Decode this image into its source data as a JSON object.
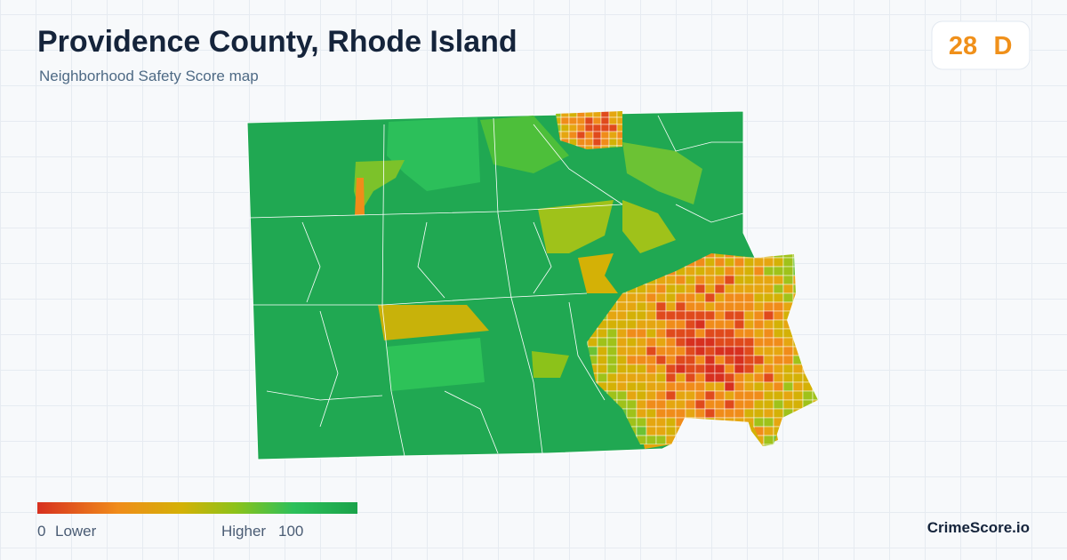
{
  "header": {
    "title": "Providence County, Rhode Island",
    "subtitle": "Neighborhood Safety Score map"
  },
  "score": {
    "value": 28,
    "grade": "D"
  },
  "legend": {
    "min": 0,
    "min_label": "Lower",
    "max_label": "Higher",
    "max": 100
  },
  "brand": "CrimeScore.io"
}
